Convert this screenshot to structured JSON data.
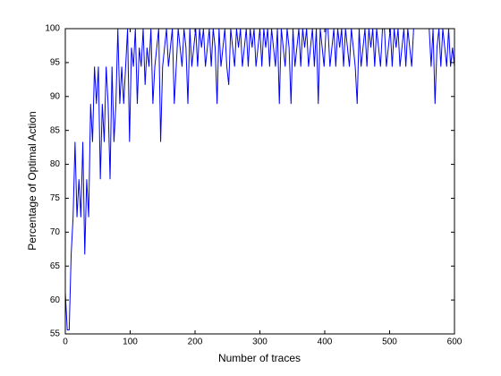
{
  "chart_data": {
    "type": "line",
    "xlabel": "Number of traces",
    "ylabel": "Percentage of Optimal Action",
    "xlim": [
      0,
      600
    ],
    "xticks": [
      0,
      100,
      200,
      300,
      400,
      500,
      600
    ],
    "ylim": [
      55,
      100
    ],
    "yticks": [
      55,
      60,
      65,
      70,
      75,
      80,
      85,
      90,
      95,
      100
    ],
    "grid": false,
    "x": [
      0,
      3,
      6,
      9,
      12,
      15,
      18,
      21,
      24,
      27,
      30,
      33,
      36,
      39,
      42,
      45,
      48,
      51,
      54,
      57,
      60,
      63,
      66,
      69,
      72,
      75,
      78,
      81,
      84,
      87,
      90,
      93,
      96,
      99,
      102,
      105,
      108,
      111,
      114,
      117,
      120,
      123,
      126,
      129,
      132,
      135,
      138,
      141,
      144,
      147,
      150,
      153,
      156,
      159,
      162,
      165,
      168,
      171,
      174,
      177,
      180,
      183,
      186,
      189,
      192,
      195,
      198,
      201,
      204,
      207,
      210,
      213,
      216,
      219,
      222,
      225,
      228,
      231,
      234,
      237,
      240,
      243,
      246,
      249,
      252,
      255,
      258,
      261,
      264,
      267,
      270,
      273,
      276,
      279,
      282,
      285,
      288,
      291,
      294,
      297,
      300,
      303,
      306,
      309,
      312,
      315,
      318,
      321,
      324,
      327,
      330,
      333,
      336,
      339,
      342,
      345,
      348,
      351,
      354,
      357,
      360,
      363,
      366,
      369,
      372,
      375,
      378,
      381,
      384,
      387,
      390,
      393,
      396,
      399,
      402,
      405,
      408,
      411,
      414,
      417,
      420,
      423,
      426,
      429,
      432,
      435,
      438,
      441,
      444,
      447,
      450,
      453,
      456,
      459,
      462,
      465,
      468,
      471,
      474,
      477,
      480,
      483,
      486,
      489,
      492,
      495,
      498,
      501,
      504,
      507,
      510,
      513,
      516,
      519,
      522,
      525,
      528,
      531,
      534,
      537,
      540,
      543,
      546,
      549,
      552,
      555,
      558,
      561,
      564,
      567,
      570,
      573,
      576,
      579,
      582,
      585,
      588,
      591,
      594,
      597,
      600
    ],
    "series": [
      {
        "color": "#0000ff",
        "values": [
          61.1,
          55.6,
          55.6,
          66.7,
          72.2,
          83.3,
          72.2,
          77.8,
          72.2,
          83.3,
          66.7,
          77.8,
          72.2,
          88.9,
          83.3,
          94.4,
          88.9,
          94.4,
          77.8,
          88.9,
          83.3,
          94.4,
          88.9,
          77.8,
          94.4,
          83.3,
          88.9,
          100,
          88.9,
          94.4,
          88.9,
          94.4,
          100,
          83.3,
          97.2,
          94.4,
          100,
          88.9,
          97.2,
          94.4,
          100,
          91.7,
          97.2,
          94.4,
          100,
          88.9,
          94.4,
          97.2,
          100,
          83.3,
          94.4,
          97.2,
          100,
          94.4,
          97.2,
          100,
          88.9,
          94.4,
          100,
          97.2,
          94.4,
          100,
          97.2,
          88.9,
          100,
          94.4,
          97.2,
          100,
          94.4,
          100,
          97.2,
          100,
          94.4,
          97.2,
          100,
          94.4,
          100,
          97.2,
          88.9,
          100,
          94.4,
          97.2,
          100,
          94.4,
          91.7,
          100,
          97.2,
          94.4,
          100,
          97.2,
          100,
          94.4,
          97.2,
          100,
          94.4,
          100,
          97.2,
          100,
          94.4,
          97.2,
          100,
          94.4,
          100,
          97.2,
          100,
          94.4,
          100,
          97.2,
          94.4,
          100,
          88.9,
          100,
          97.2,
          94.4,
          100,
          97.2,
          88.9,
          100,
          94.4,
          97.2,
          100,
          94.4,
          100,
          97.2,
          100,
          94.4,
          97.2,
          100,
          94.4,
          100,
          88.9,
          100,
          97.2,
          94.4,
          100,
          100,
          94.4,
          97.2,
          100,
          94.4,
          100,
          97.2,
          100,
          94.4,
          100,
          97.2,
          94.4,
          100,
          97.2,
          94.4,
          88.9,
          100,
          94.4,
          97.2,
          100,
          94.4,
          100,
          97.2,
          100,
          94.4,
          100,
          97.2,
          94.4,
          100,
          100,
          94.4,
          97.2,
          100,
          94.4,
          100,
          97.2,
          100,
          94.4,
          97.2,
          100,
          94.4,
          100,
          97.2,
          94.4,
          100,
          100,
          100,
          100,
          100,
          100,
          100,
          100,
          100,
          94.4,
          100,
          88.9,
          97.2,
          100,
          94.4,
          100,
          97.2,
          94.4,
          100,
          94.4,
          97.2,
          94.4
        ]
      }
    ]
  }
}
